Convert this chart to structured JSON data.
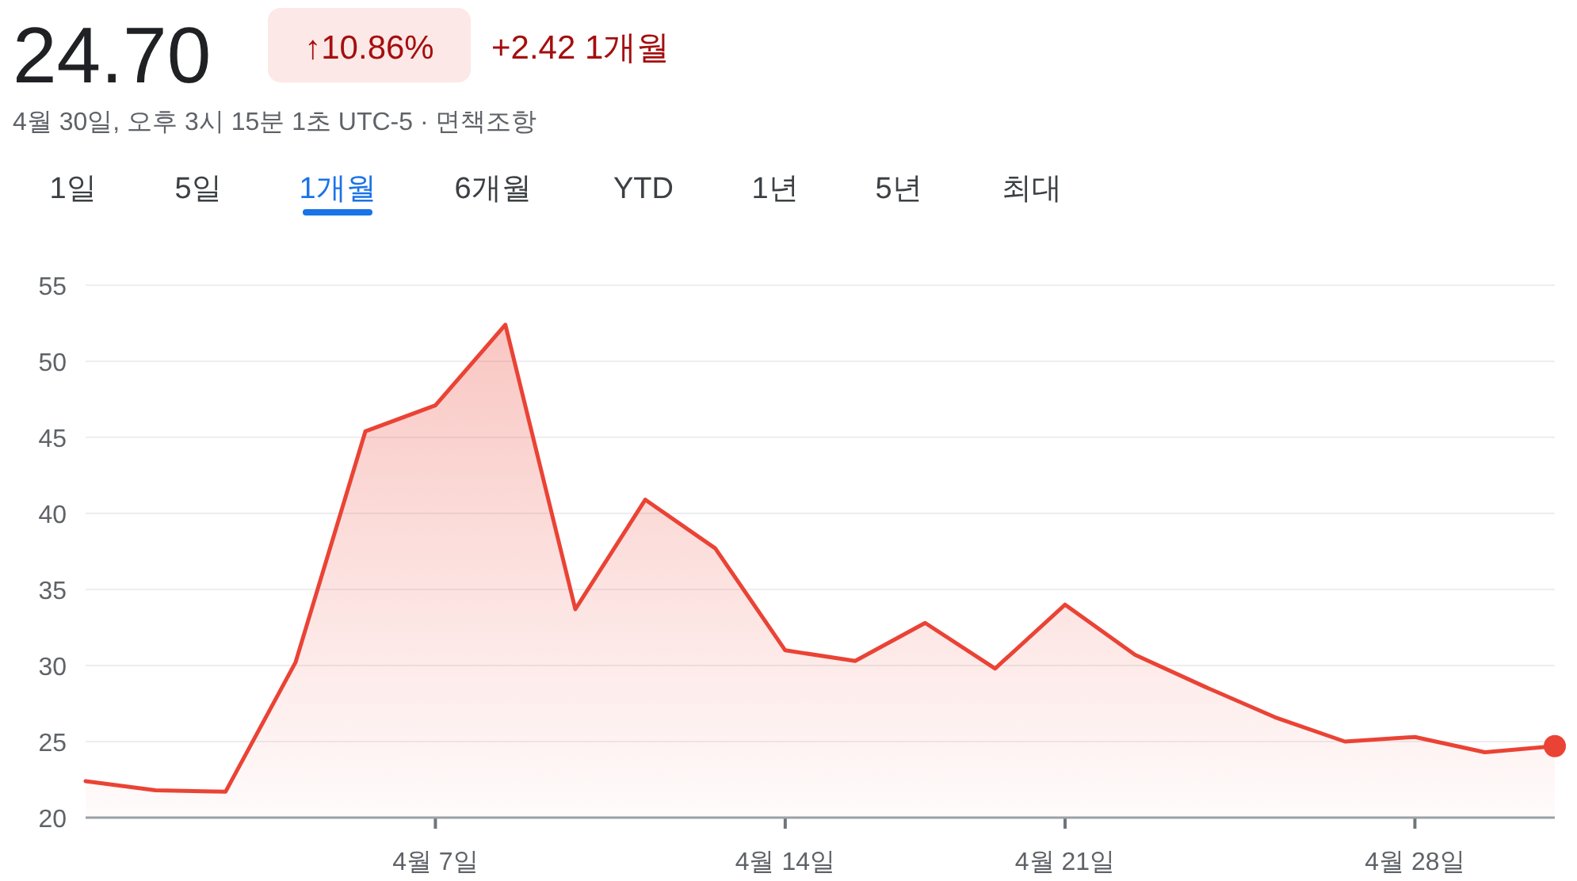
{
  "chart_data": {
    "type": "area",
    "title": "24.70",
    "subtitle": "4월 30일, 오후 3시 15분 1초 UTC-5 · 면책조항",
    "annotations": [
      "↑10.86%",
      "+2.42 1개월",
      "1일",
      "5일",
      "1개월",
      "6개월",
      "YTD",
      "1년",
      "5년",
      "최대"
    ],
    "categories": [
      null,
      null,
      null,
      null,
      null,
      "4월 7일",
      null,
      null,
      null,
      null,
      "4월 14일",
      null,
      null,
      null,
      "4월 21일",
      null,
      null,
      null,
      null,
      "4월 28일",
      null,
      null
    ],
    "series": [
      {
        "color": "#ea4335",
        "values": [
          22.4,
          21.8,
          21.7,
          30.2,
          45.4,
          47.1,
          52.4,
          33.7,
          40.9,
          37.7,
          31.0,
          30.3,
          32.8,
          29.8,
          34.0,
          30.7,
          28.6,
          26.6,
          25.0,
          25.3,
          24.3,
          24.7
        ]
      }
    ],
    "ylim": [
      20,
      55
    ],
    "yticks": [
      20,
      25,
      30,
      35,
      40,
      45,
      50,
      55
    ],
    "grid": "y"
  }
}
